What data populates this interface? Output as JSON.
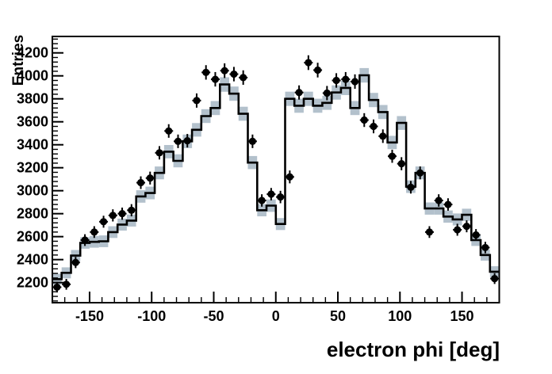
{
  "figure": {
    "background": "#ffffff",
    "frame_color": "#000000"
  },
  "chart_data": {
    "type": "bar",
    "subtype": "histogram-with-error-band-and-data-points",
    "title": "",
    "xlabel": "electron phi [deg]",
    "ylabel": "Entries",
    "xlim": [
      -180,
      180
    ],
    "ylim": [
      2025,
      4343
    ],
    "x_major_ticks": [
      -150,
      -100,
      -50,
      0,
      50,
      100,
      150
    ],
    "x_minor_step": 10,
    "y_major_ticks": [
      2200,
      2400,
      2600,
      2800,
      3000,
      3200,
      3400,
      3600,
      3800,
      4000,
      4200
    ],
    "y_minor_step": 40,
    "grid": "off",
    "legend": "none",
    "bin_width_deg": 7.5,
    "bin_centers": [
      -176.25,
      -168.75,
      -161.25,
      -153.75,
      -146.25,
      -138.75,
      -131.25,
      -123.75,
      -116.25,
      -108.75,
      -101.25,
      -93.75,
      -86.25,
      -78.75,
      -71.25,
      -63.75,
      -56.25,
      -48.75,
      -41.25,
      -33.75,
      -26.25,
      -18.75,
      -11.25,
      -3.75,
      3.75,
      11.25,
      18.75,
      26.25,
      33.75,
      41.25,
      48.75,
      56.25,
      63.75,
      71.25,
      78.75,
      86.25,
      93.75,
      101.25,
      108.75,
      116.25,
      123.75,
      131.25,
      138.75,
      146.25,
      153.75,
      161.25,
      168.75,
      176.25
    ],
    "series": [
      {
        "name": "simulation-histogram",
        "style": "step-line",
        "values": [
          2230,
          2285,
          2435,
          2545,
          2555,
          2560,
          2640,
          2705,
          2740,
          2950,
          2980,
          3155,
          3340,
          3260,
          3430,
          3530,
          3650,
          3720,
          3925,
          3845,
          3670,
          3245,
          2830,
          2870,
          2710,
          3800,
          3740,
          3800,
          3740,
          3765,
          3855,
          3895,
          3720,
          4005,
          3790,
          3685,
          3420,
          3590,
          3035,
          3155,
          2845,
          2845,
          2775,
          2750,
          2790,
          2570,
          2440,
          2295
        ],
        "errors": [
          47,
          48,
          49,
          50,
          51,
          51,
          51,
          52,
          52,
          54,
          55,
          56,
          58,
          57,
          59,
          59,
          60,
          61,
          63,
          62,
          61,
          57,
          53,
          54,
          52,
          62,
          61,
          62,
          61,
          61,
          62,
          62,
          61,
          63,
          62,
          61,
          58,
          60,
          55,
          56,
          53,
          53,
          53,
          52,
          53,
          51,
          49,
          48
        ]
      },
      {
        "name": "data-points",
        "style": "filled-circle-with-error-bars",
        "values": [
          2160,
          2185,
          2375,
          2570,
          2640,
          2730,
          2785,
          2800,
          2830,
          3070,
          3110,
          3330,
          3520,
          3430,
          3435,
          3785,
          4030,
          3970,
          4045,
          4015,
          3985,
          3430,
          2915,
          2970,
          2945,
          3120,
          3855,
          4115,
          4050,
          3850,
          3960,
          3970,
          3950,
          3615,
          3560,
          3475,
          3300,
          3235,
          3030,
          3155,
          2640,
          2915,
          2880,
          2660,
          2690,
          2615,
          2505,
          2235
        ],
        "errors": [
          46,
          47,
          49,
          51,
          51,
          52,
          53,
          53,
          53,
          55,
          56,
          58,
          59,
          59,
          59,
          62,
          63,
          63,
          64,
          63,
          63,
          59,
          54,
          54,
          54,
          56,
          62,
          64,
          64,
          62,
          63,
          63,
          63,
          60,
          60,
          59,
          57,
          57,
          55,
          56,
          51,
          54,
          54,
          52,
          52,
          51,
          50,
          47
        ]
      }
    ],
    "colors": {
      "band": "#b3c1cc",
      "histogram_line": "#000000",
      "marker": "#000000",
      "axis": "#000000",
      "label": "#000000"
    }
  }
}
